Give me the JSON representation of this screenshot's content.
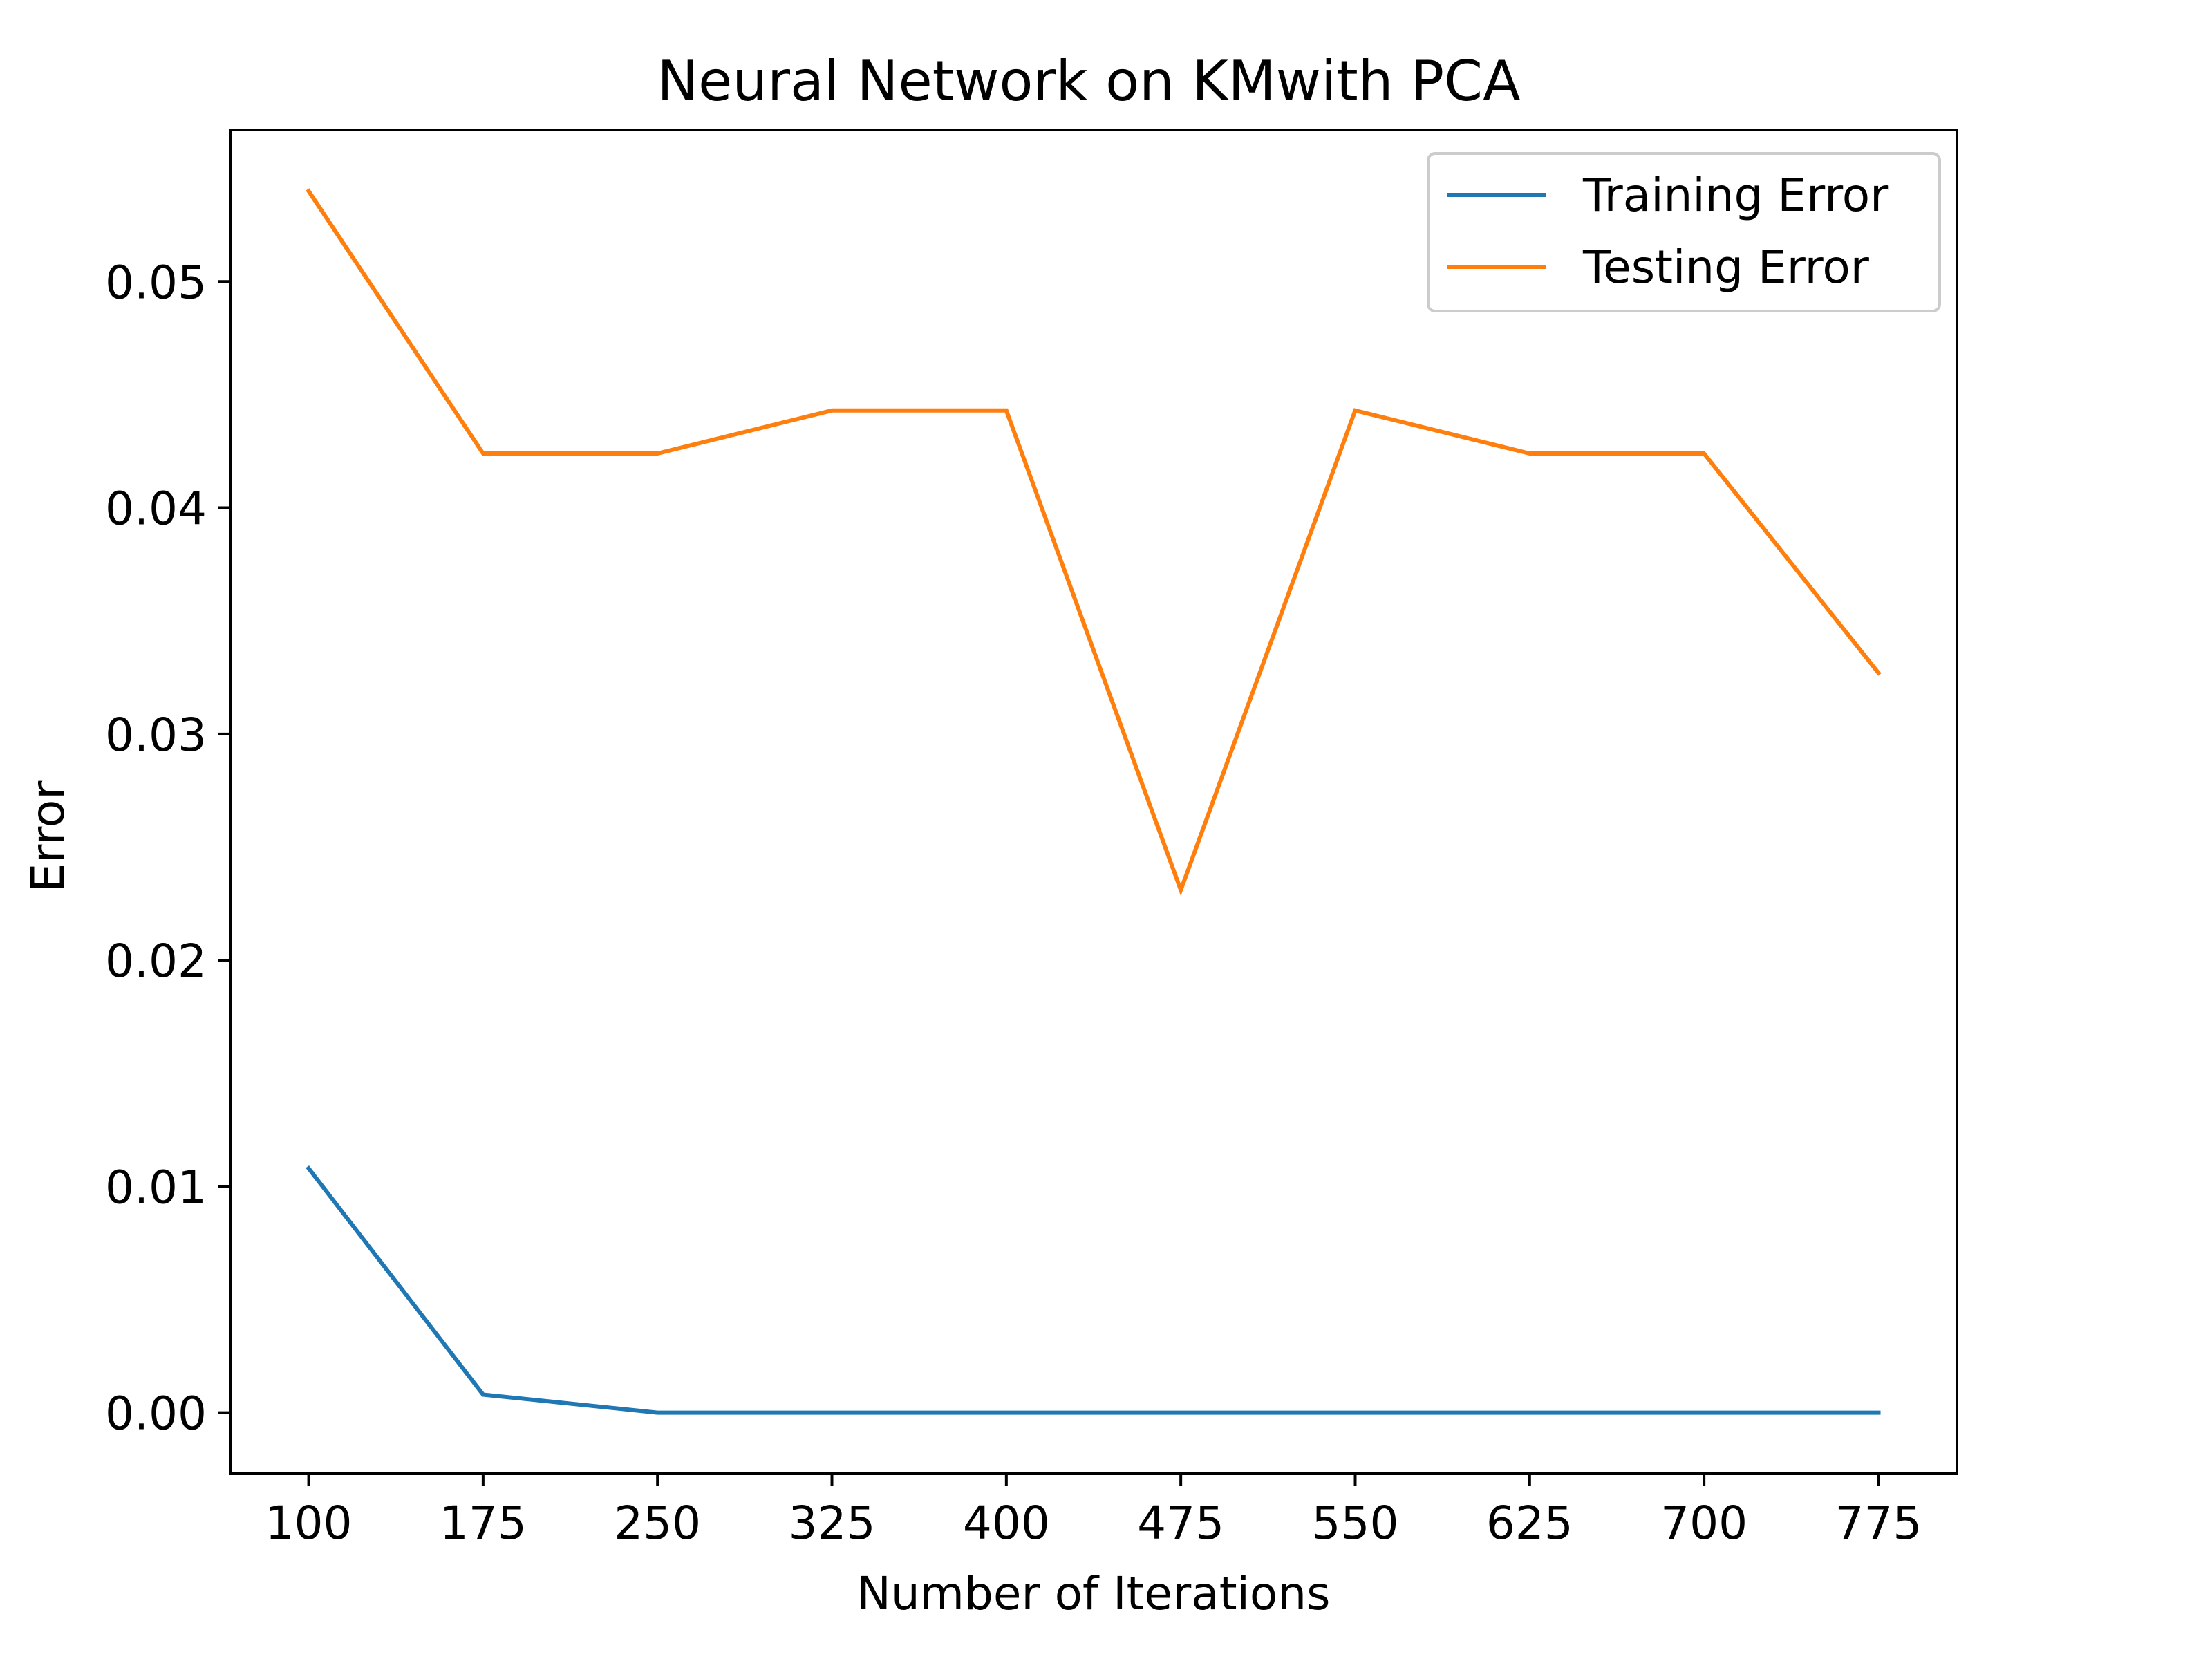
{
  "chart_data": {
    "type": "line",
    "title": "Neural Network on KMwith PCA",
    "xlabel": "Number of Iterations",
    "ylabel": "Error",
    "x": [
      100,
      175,
      250,
      325,
      400,
      475,
      550,
      625,
      700,
      775
    ],
    "xticks": [
      "100",
      "175",
      "250",
      "325",
      "400",
      "475",
      "550",
      "625",
      "700",
      "775"
    ],
    "yticks": [
      0.0,
      0.01,
      0.02,
      0.03,
      0.04,
      0.05
    ],
    "ytick_labels": [
      "0.00",
      "0.01",
      "0.02",
      "0.03",
      "0.04",
      "0.05"
    ],
    "xlim": [
      66.25,
      808.75
    ],
    "ylim": [
      -0.0027,
      0.0567
    ],
    "grid": false,
    "legend_position": "top-right",
    "series": [
      {
        "name": "Training Error",
        "color": "#1f77b4",
        "values": [
          0.0108,
          0.0008,
          0.0,
          0.0,
          0.0,
          0.0,
          0.0,
          0.0,
          0.0,
          0.0
        ]
      },
      {
        "name": "Testing Error",
        "color": "#ff7f0e",
        "values": [
          0.054,
          0.0424,
          0.0424,
          0.0443,
          0.0443,
          0.0231,
          0.0443,
          0.0424,
          0.0424,
          0.0327
        ]
      }
    ]
  }
}
